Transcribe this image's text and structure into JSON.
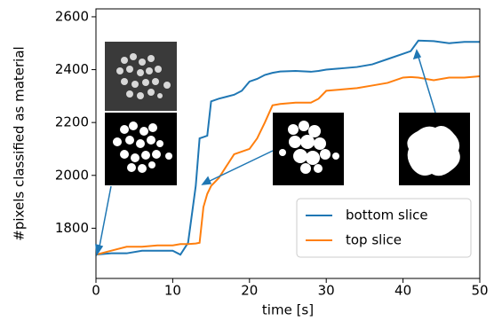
{
  "chart_data": {
    "type": "line",
    "xlabel": "time [s]",
    "ylabel": "#pixels classified as material",
    "x": [
      0,
      2,
      4,
      6,
      8,
      10,
      11,
      12,
      13,
      13.5,
      14,
      14.5,
      15,
      16,
      18,
      19,
      20,
      21,
      22,
      23,
      24,
      26,
      28,
      29,
      30,
      32,
      34,
      36,
      38,
      40,
      41,
      42,
      44,
      46,
      48,
      50
    ],
    "series": [
      {
        "name": "bottom slice",
        "color": "#1f77b4",
        "values": [
          1700,
          1705,
          1705,
          1715,
          1715,
          1715,
          1700,
          1745,
          1960,
          2140,
          2145,
          2150,
          2280,
          2290,
          2305,
          2320,
          2355,
          2365,
          2380,
          2388,
          2393,
          2395,
          2392,
          2395,
          2400,
          2405,
          2410,
          2420,
          2440,
          2460,
          2470,
          2510,
          2508,
          2500,
          2505,
          2505
        ]
      },
      {
        "name": "top slice",
        "color": "#ff7f0e",
        "values": [
          1700,
          1715,
          1730,
          1730,
          1735,
          1735,
          1740,
          1740,
          1742,
          1745,
          1880,
          1930,
          1960,
          1990,
          2080,
          2090,
          2100,
          2140,
          2200,
          2265,
          2270,
          2275,
          2275,
          2290,
          2320,
          2325,
          2330,
          2340,
          2350,
          2370,
          2372,
          2370,
          2360,
          2370,
          2370,
          2375
        ]
      }
    ],
    "xlim": [
      0,
      50
    ],
    "ylim": [
      1610,
      2630
    ],
    "xticks": [
      0,
      10,
      20,
      30,
      40,
      50
    ],
    "yticks": [
      1800,
      2000,
      2200,
      2400,
      2600
    ],
    "legend": "lower right"
  }
}
